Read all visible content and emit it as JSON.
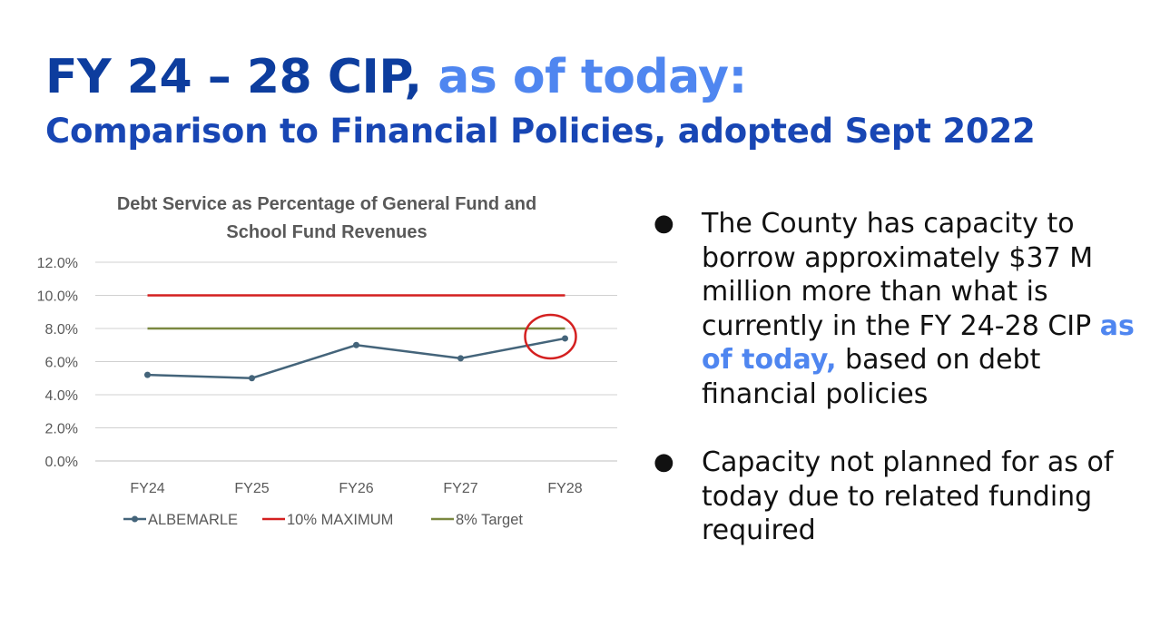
{
  "slide": {
    "title_main": "FY 24 – 28 CIP,",
    "title_accent": "as of today:",
    "subtitle": "Comparison to Financial Policies, adopted Sept 2022"
  },
  "bullets": [
    {
      "marker": "●",
      "text_before": "The County has capacity to borrow approximately $37 M million more than what is currently in the FY 24-28 CIP",
      "highlight": "as of today,",
      "text_after": "based on debt financial policies"
    },
    {
      "marker": "●",
      "text_before": "Capacity not planned for as of today due to related funding required",
      "highlight": "",
      "text_after": ""
    }
  ],
  "colors": {
    "title_dark": "#0d3d9e",
    "title_accent": "#4f86f0",
    "subtitle": "#1846b4",
    "series_albemarle": "#44647a",
    "series_max": "#d42020",
    "series_target": "#7a8840",
    "highlight_circle": "#d42020",
    "gridline": "#d0d0d0"
  },
  "chart_data": {
    "type": "line",
    "title_lines": [
      "Debt Service as Percentage of General Fund and",
      "School Fund Revenues"
    ],
    "categories": [
      "FY24",
      "FY25",
      "FY26",
      "FY27",
      "FY28"
    ],
    "y_ticks": [
      "0.0%",
      "2.0%",
      "4.0%",
      "6.0%",
      "8.0%",
      "10.0%",
      "12.0%"
    ],
    "ylim": [
      0,
      12
    ],
    "grid": true,
    "legend_position": "bottom",
    "series": [
      {
        "name": "ALBEMARLE",
        "values": [
          5.2,
          5.0,
          7.0,
          6.2,
          7.4
        ],
        "markers": true
      },
      {
        "name": "10% MAXIMUM",
        "values": [
          10,
          10,
          10,
          10,
          10
        ],
        "markers": false
      },
      {
        "name": "8% Target",
        "values": [
          8,
          8,
          8,
          8,
          8
        ],
        "markers": false
      }
    ],
    "annotation": {
      "type": "circle",
      "category": "FY28",
      "series": "ALBEMARLE"
    }
  }
}
